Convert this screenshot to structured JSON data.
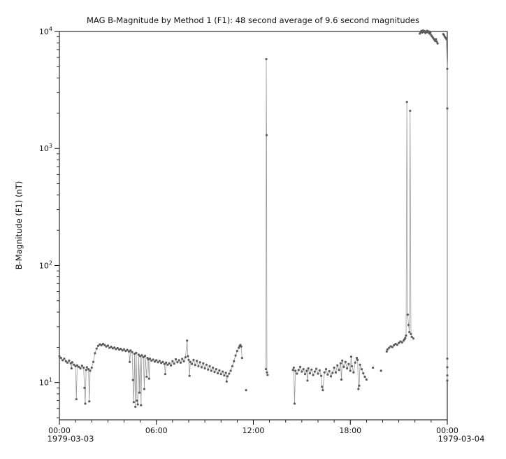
{
  "chart_data": {
    "type": "line",
    "marker": "dot",
    "title": "MAG  B-Magnitude by Method 1 (F1): 48 second average of 9.6 second magnitudes",
    "ylabel": "B-Magnitude (F1) (nT)",
    "x_date_left": "1979-03-03",
    "x_date_right": "1979-03-04",
    "x_unit": "hours since 1979-03-03 00:00",
    "xlim": [
      0,
      24
    ],
    "ylim": [
      4.8,
      10000
    ],
    "yscale": "log",
    "grid": "off",
    "legend": "none",
    "gap_threshold_hours": 0.22,
    "colors": {
      "marker": "#5c5c5c",
      "line": "#9a9a9a",
      "axis": "#000000",
      "text": "#111111"
    },
    "x_ticks": [
      {
        "h": 0,
        "label": "00:00"
      },
      {
        "h": 6,
        "label": "06:00"
      },
      {
        "h": 12,
        "label": "12:00"
      },
      {
        "h": 18,
        "label": "18:00"
      },
      {
        "h": 24,
        "label": "00:00"
      }
    ],
    "y_ticks": [
      {
        "value": 10,
        "base": "10",
        "exp": "1"
      },
      {
        "value": 100,
        "base": "10",
        "exp": "2"
      },
      {
        "value": 1000,
        "base": "10",
        "exp": "3"
      },
      {
        "value": 10000,
        "base": "10",
        "exp": "4"
      }
    ],
    "points": [
      [
        0.0,
        16.8
      ],
      [
        0.1,
        16.2
      ],
      [
        0.2,
        15.5
      ],
      [
        0.3,
        16.0
      ],
      [
        0.4,
        15.2
      ],
      [
        0.5,
        14.8
      ],
      [
        0.6,
        15.4
      ],
      [
        0.7,
        14.6
      ],
      [
        0.75,
        13.2
      ],
      [
        0.8,
        14.9
      ],
      [
        0.9,
        14.2
      ],
      [
        1.0,
        13.8
      ],
      [
        1.05,
        7.2
      ],
      [
        1.1,
        14.0
      ],
      [
        1.2,
        13.6
      ],
      [
        1.3,
        13.2
      ],
      [
        1.4,
        13.9
      ],
      [
        1.5,
        13.4
      ],
      [
        1.55,
        9.0
      ],
      [
        1.6,
        6.6
      ],
      [
        1.65,
        12.8
      ],
      [
        1.7,
        13.5
      ],
      [
        1.8,
        13.0
      ],
      [
        1.85,
        6.9
      ],
      [
        1.9,
        12.6
      ],
      [
        2.0,
        13.4
      ],
      [
        2.1,
        15.0
      ],
      [
        2.2,
        17.8
      ],
      [
        2.3,
        19.5
      ],
      [
        2.4,
        20.6
      ],
      [
        2.5,
        21.2
      ],
      [
        2.6,
        20.8
      ],
      [
        2.7,
        21.4
      ],
      [
        2.8,
        20.9
      ],
      [
        2.9,
        20.3
      ],
      [
        3.0,
        20.7
      ],
      [
        3.1,
        19.8
      ],
      [
        3.2,
        20.2
      ],
      [
        3.3,
        19.6
      ],
      [
        3.4,
        19.9
      ],
      [
        3.5,
        19.3
      ],
      [
        3.6,
        19.7
      ],
      [
        3.7,
        19.1
      ],
      [
        3.8,
        19.4
      ],
      [
        3.9,
        18.8
      ],
      [
        4.0,
        19.2
      ],
      [
        4.1,
        18.6
      ],
      [
        4.2,
        19.0
      ],
      [
        4.3,
        18.4
      ],
      [
        4.35,
        15.0
      ],
      [
        4.4,
        18.8
      ],
      [
        4.5,
        18.2
      ],
      [
        4.55,
        10.5
      ],
      [
        4.6,
        6.8
      ],
      [
        4.65,
        17.6
      ],
      [
        4.7,
        6.2
      ],
      [
        4.75,
        17.9
      ],
      [
        4.8,
        7.0
      ],
      [
        4.85,
        6.5
      ],
      [
        4.9,
        17.3
      ],
      [
        4.95,
        8.2
      ],
      [
        5.0,
        16.8
      ],
      [
        5.05,
        6.4
      ],
      [
        5.1,
        17.1
      ],
      [
        5.2,
        16.5
      ],
      [
        5.25,
        8.8
      ],
      [
        5.3,
        16.9
      ],
      [
        5.4,
        11.2
      ],
      [
        5.45,
        16.2
      ],
      [
        5.5,
        15.8
      ],
      [
        5.55,
        10.8
      ],
      [
        5.6,
        16.0
      ],
      [
        5.7,
        15.4
      ],
      [
        5.8,
        15.7
      ],
      [
        5.9,
        15.1
      ],
      [
        6.0,
        15.5
      ],
      [
        6.1,
        14.9
      ],
      [
        6.2,
        15.3
      ],
      [
        6.3,
        14.7
      ],
      [
        6.4,
        15.0
      ],
      [
        6.5,
        14.4
      ],
      [
        6.55,
        11.8
      ],
      [
        6.6,
        14.8
      ],
      [
        6.7,
        14.2
      ],
      [
        6.8,
        14.6
      ],
      [
        6.9,
        14.0
      ],
      [
        7.0,
        15.2
      ],
      [
        7.1,
        14.5
      ],
      [
        7.2,
        15.8
      ],
      [
        7.3,
        14.9
      ],
      [
        7.4,
        15.5
      ],
      [
        7.5,
        14.8
      ],
      [
        7.6,
        15.9
      ],
      [
        7.7,
        15.2
      ],
      [
        7.8,
        16.4
      ],
      [
        7.9,
        22.8
      ],
      [
        7.95,
        16.8
      ],
      [
        8.0,
        15.6
      ],
      [
        8.05,
        11.4
      ],
      [
        8.1,
        15.0
      ],
      [
        8.2,
        14.4
      ],
      [
        8.3,
        15.6
      ],
      [
        8.4,
        14.1
      ],
      [
        8.5,
        15.3
      ],
      [
        8.6,
        13.8
      ],
      [
        8.7,
        14.9
      ],
      [
        8.8,
        13.5
      ],
      [
        8.9,
        14.6
      ],
      [
        9.0,
        13.2
      ],
      [
        9.1,
        14.2
      ],
      [
        9.2,
        12.9
      ],
      [
        9.3,
        13.8
      ],
      [
        9.4,
        12.6
      ],
      [
        9.5,
        13.4
      ],
      [
        9.6,
        12.3
      ],
      [
        9.7,
        13.0
      ],
      [
        9.8,
        12.0
      ],
      [
        9.9,
        12.7
      ],
      [
        10.0,
        11.8
      ],
      [
        10.1,
        12.4
      ],
      [
        10.2,
        11.5
      ],
      [
        10.3,
        12.1
      ],
      [
        10.35,
        10.2
      ],
      [
        10.4,
        11.3
      ],
      [
        10.5,
        11.9
      ],
      [
        10.6,
        12.6
      ],
      [
        10.7,
        13.8
      ],
      [
        10.8,
        15.2
      ],
      [
        10.9,
        17.0
      ],
      [
        11.0,
        18.6
      ],
      [
        11.1,
        19.8
      ],
      [
        11.15,
        20.5
      ],
      [
        11.2,
        20.9
      ],
      [
        11.25,
        20.3
      ],
      [
        11.3,
        16.2
      ],
      [
        11.55,
        8.6
      ],
      [
        12.78,
        13.0
      ],
      [
        12.8,
        5800
      ],
      [
        12.82,
        1300
      ],
      [
        12.84,
        12.2
      ],
      [
        12.88,
        11.6
      ],
      [
        14.45,
        12.8
      ],
      [
        14.5,
        13.4
      ],
      [
        14.55,
        6.6
      ],
      [
        14.6,
        12.6
      ],
      [
        14.7,
        11.9
      ],
      [
        14.8,
        12.8
      ],
      [
        14.9,
        13.6
      ],
      [
        15.0,
        12.4
      ],
      [
        15.1,
        13.0
      ],
      [
        15.2,
        11.8
      ],
      [
        15.3,
        12.6
      ],
      [
        15.35,
        10.4
      ],
      [
        15.4,
        13.2
      ],
      [
        15.5,
        12.0
      ],
      [
        15.6,
        12.9
      ],
      [
        15.7,
        11.6
      ],
      [
        15.8,
        12.4
      ],
      [
        15.9,
        13.1
      ],
      [
        16.0,
        11.9
      ],
      [
        16.1,
        12.7
      ],
      [
        16.2,
        11.4
      ],
      [
        16.25,
        9.2
      ],
      [
        16.3,
        8.6
      ],
      [
        16.4,
        12.2
      ],
      [
        16.5,
        13.0
      ],
      [
        16.6,
        11.7
      ],
      [
        16.7,
        12.5
      ],
      [
        16.8,
        11.3
      ],
      [
        16.9,
        12.1
      ],
      [
        17.0,
        13.4
      ],
      [
        17.1,
        12.2
      ],
      [
        17.2,
        14.0
      ],
      [
        17.3,
        12.8
      ],
      [
        17.4,
        14.6
      ],
      [
        17.45,
        10.6
      ],
      [
        17.5,
        15.4
      ],
      [
        17.6,
        13.6
      ],
      [
        17.7,
        15.0
      ],
      [
        17.8,
        13.2
      ],
      [
        17.9,
        14.4
      ],
      [
        18.0,
        12.6
      ],
      [
        18.05,
        16.6
      ],
      [
        18.1,
        13.8
      ],
      [
        18.2,
        12.2
      ],
      [
        18.3,
        14.8
      ],
      [
        18.4,
        16.2
      ],
      [
        18.45,
        15.6
      ],
      [
        18.5,
        8.8
      ],
      [
        18.55,
        9.4
      ],
      [
        18.6,
        14.2
      ],
      [
        18.7,
        13.0
      ],
      [
        18.8,
        12.0
      ],
      [
        18.9,
        11.2
      ],
      [
        19.0,
        10.6
      ],
      [
        19.4,
        13.4
      ],
      [
        19.9,
        12.6
      ],
      [
        20.25,
        18.4
      ],
      [
        20.3,
        19.2
      ],
      [
        20.4,
        19.8
      ],
      [
        20.5,
        20.4
      ],
      [
        20.6,
        20.1
      ],
      [
        20.7,
        20.8
      ],
      [
        20.8,
        21.4
      ],
      [
        20.9,
        21.0
      ],
      [
        21.0,
        21.8
      ],
      [
        21.1,
        22.4
      ],
      [
        21.2,
        22.0
      ],
      [
        21.3,
        22.8
      ],
      [
        21.35,
        23.4
      ],
      [
        21.4,
        24.0
      ],
      [
        21.45,
        25.2
      ],
      [
        21.5,
        2500
      ],
      [
        21.55,
        38
      ],
      [
        21.6,
        31
      ],
      [
        21.65,
        27
      ],
      [
        21.7,
        2100
      ],
      [
        21.75,
        26
      ],
      [
        21.8,
        24.6
      ],
      [
        21.9,
        23.8
      ],
      [
        22.3,
        9600
      ],
      [
        22.35,
        9900
      ],
      [
        22.4,
        10100
      ],
      [
        22.45,
        9800
      ],
      [
        22.5,
        10200
      ],
      [
        22.55,
        9950
      ],
      [
        22.6,
        10050
      ],
      [
        22.65,
        9700
      ],
      [
        22.7,
        9900
      ],
      [
        22.75,
        10150
      ],
      [
        22.8,
        9850
      ],
      [
        22.85,
        10000
      ],
      [
        22.9,
        9600
      ],
      [
        22.95,
        9750
      ],
      [
        23.0,
        9300
      ],
      [
        23.05,
        9100
      ],
      [
        23.1,
        8900
      ],
      [
        23.15,
        8700
      ],
      [
        23.2,
        8500
      ],
      [
        23.25,
        8300
      ],
      [
        23.3,
        8600
      ],
      [
        23.35,
        8200
      ],
      [
        23.4,
        7900
      ],
      [
        23.75,
        9500
      ],
      [
        23.8,
        9300
      ],
      [
        23.85,
        9000
      ],
      [
        23.9,
        8800
      ],
      [
        23.95,
        8600
      ],
      [
        24.0,
        4800
      ],
      [
        24.0,
        2200
      ],
      [
        24.0,
        16
      ],
      [
        24.0,
        13.5
      ],
      [
        24.0,
        11.5
      ],
      [
        24.0,
        10.4
      ]
    ]
  }
}
